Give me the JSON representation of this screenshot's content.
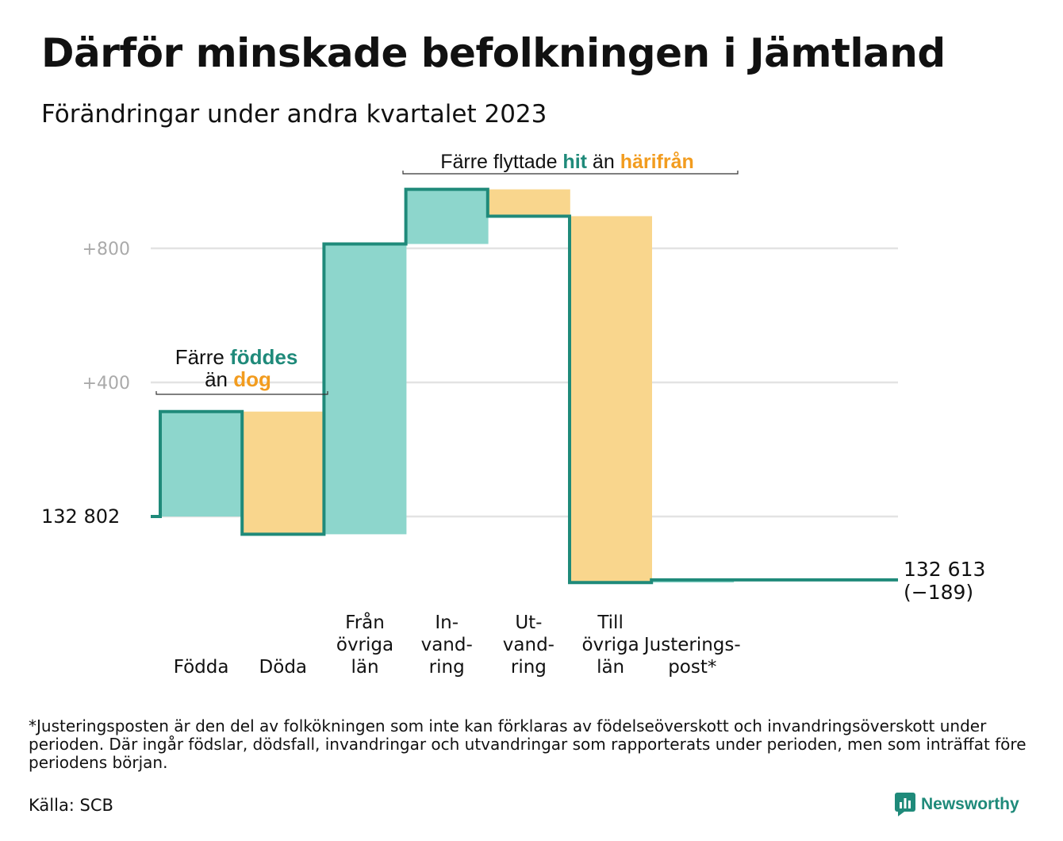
{
  "title": "Därför minskade befolkningen i Jämtland",
  "subtitle": "Förändringar under andra kvartalet 2023",
  "footnote": "*Justeringsposten är den del av folkökningen som inte kan förklaras av födelseöverskott och invandringsöverskott under perioden. Där ingår födslar, dödsfall, invandringar och utvandringar som rapporterats under perioden, men som inträffat före periodens början.",
  "source": "Källa: SCB",
  "brand": "Newsworthy",
  "colors": {
    "increase": "#8dd6cc",
    "decrease": "#f9d68d",
    "line": "#1f8a7a",
    "grid": "#e3e3e3",
    "accent_orange": "#f29c1f",
    "tick": "#aaaaaa"
  },
  "chart_data": {
    "type": "waterfall",
    "start_label": "132   802",
    "start_value": 132802,
    "y_ticks": [
      {
        "value": 400,
        "label": "+400"
      },
      {
        "value": 800,
        "label": "+800"
      }
    ],
    "grid": true,
    "steps": [
      {
        "label": [
          "Födda"
        ],
        "change": 313
      },
      {
        "label": [
          "Döda"
        ],
        "change": -366
      },
      {
        "label": [
          "Från",
          "övriga",
          "län"
        ],
        "change": 866
      },
      {
        "label": [
          "In-",
          "vand-",
          "ring"
        ],
        "change": 163
      },
      {
        "label": [
          "Ut-",
          "vand-",
          "ring"
        ],
        "change": -80
      },
      {
        "label": [
          "Till",
          "övriga",
          "län"
        ],
        "change": -1093
      },
      {
        "label": [
          "Justerings-",
          "post*"
        ],
        "change": 8
      }
    ],
    "end_label": [
      "132 613",
      "(−189)"
    ],
    "end_value": 132613,
    "annotations": [
      {
        "parts": [
          {
            "text": "Färre",
            "style": "plain"
          },
          {
            "text": "föddes",
            "style": "increase"
          }
        ]
      },
      {
        "parts": [
          {
            "text": "än",
            "style": "plain"
          },
          {
            "text": "dog",
            "style": "decrease"
          }
        ]
      },
      {
        "parts": [
          {
            "text": "Färre flyttade",
            "style": "plain"
          },
          {
            "text": "hit",
            "style": "increase"
          },
          {
            "text": "än",
            "style": "plain"
          },
          {
            "text": "härifrån",
            "style": "decrease"
          }
        ]
      }
    ]
  }
}
